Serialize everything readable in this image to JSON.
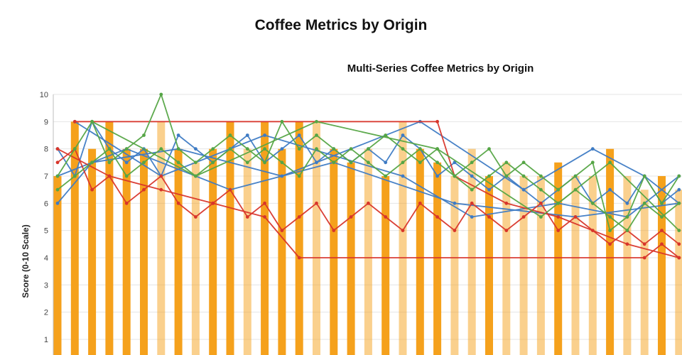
{
  "page": {
    "title": "Coffee Metrics by Origin"
  },
  "chart_data": {
    "type": "bar+line combo",
    "title": "Multi-Series Coffee Metrics by Origin",
    "ylabel": "Score (0-10 Scale)",
    "ylim": [
      0,
      10
    ],
    "y_ticks": [
      1,
      2,
      3,
      4,
      5,
      6,
      7,
      8,
      9,
      10
    ],
    "grid": "horizontal",
    "x_axis": {
      "labels_visible": false,
      "n_categories": 37
    },
    "bar_series": {
      "name": "origin-score-bars",
      "color": "#F5A11C",
      "values": [
        7,
        9,
        8,
        9,
        8,
        8,
        9,
        8,
        7.5,
        8,
        9,
        8,
        9,
        8,
        9,
        9,
        8,
        7.5,
        8,
        7,
        9,
        8,
        7.5,
        7,
        8,
        7,
        7.5,
        7,
        7,
        7.5,
        7,
        7,
        8,
        7,
        6.5,
        7,
        6.5
      ],
      "opacity": [
        1,
        1,
        1,
        1,
        1,
        1,
        0.5,
        1,
        0.5,
        1,
        1,
        0.5,
        1,
        1,
        1,
        0.5,
        1,
        1,
        0.5,
        1,
        0.5,
        1,
        1,
        0.5,
        0.5,
        1,
        0.5,
        0.5,
        0.5,
        1,
        0.5,
        0.5,
        1,
        0.5,
        0.5,
        1,
        0.5
      ]
    },
    "line_series": [
      {
        "name": "blue-1",
        "color": "#3E7BC4",
        "values": [
          8,
          7,
          9,
          8,
          7.5,
          8,
          7,
          8.5,
          8,
          7.5,
          8,
          8.5,
          7.5,
          8,
          8.5,
          7.5,
          8,
          7.5,
          8,
          7.5,
          8.5,
          8,
          7,
          7.5,
          7,
          6.5,
          7,
          6.5,
          6,
          6.5,
          7,
          6,
          6.5,
          6,
          7,
          6,
          6.5
        ]
      },
      {
        "name": "blue-2",
        "color": "#3E7BC4",
        "points": [
          [
            0,
            6
          ],
          [
            2,
            7.5
          ],
          [
            7,
            8
          ],
          [
            13,
            7
          ],
          [
            21,
            9
          ],
          [
            27,
            6.5
          ],
          [
            31,
            8
          ],
          [
            34,
            7
          ],
          [
            36,
            6
          ]
        ]
      },
      {
        "name": "blue-3",
        "color": "#3E7BC4",
        "points": [
          [
            1,
            9
          ],
          [
            6,
            7
          ],
          [
            12,
            8.5
          ],
          [
            20,
            7
          ],
          [
            24,
            5.5
          ],
          [
            29,
            6
          ],
          [
            33,
            5.5
          ],
          [
            36,
            7
          ]
        ]
      },
      {
        "name": "blue-4",
        "color": "#3E7BC4",
        "points": [
          [
            0,
            7
          ],
          [
            4,
            8
          ],
          [
            10,
            6.5
          ],
          [
            16,
            7.5
          ],
          [
            23,
            6
          ],
          [
            30,
            5.5
          ],
          [
            36,
            6
          ]
        ]
      },
      {
        "name": "red-1",
        "color": "#D8352A",
        "points": [
          [
            1,
            9
          ],
          [
            22,
            9
          ],
          [
            23,
            7
          ],
          [
            26,
            6
          ],
          [
            29,
            5.5
          ],
          [
            33,
            4.5
          ],
          [
            36,
            4
          ]
        ]
      },
      {
        "name": "red-2",
        "color": "#D8352A",
        "points": [
          [
            0,
            8
          ],
          [
            3,
            7
          ],
          [
            6,
            6.5
          ],
          [
            9,
            6
          ],
          [
            12,
            5.5
          ],
          [
            14,
            4
          ],
          [
            34,
            4
          ],
          [
            35,
            4.5
          ],
          [
            36,
            4
          ]
        ]
      },
      {
        "name": "red-3",
        "color": "#D8352A",
        "values": [
          7.5,
          8,
          6.5,
          7,
          6,
          6.5,
          7,
          6,
          5.5,
          6,
          6.5,
          5.5,
          6,
          5,
          5.5,
          6,
          5,
          5.5,
          6,
          5.5,
          5,
          6,
          5.5,
          5,
          6,
          5.5,
          5,
          5.5,
          6,
          5,
          5.5,
          5,
          4.5,
          5,
          4.5,
          5,
          4.5
        ]
      },
      {
        "name": "green-1",
        "color": "#55A545",
        "values": [
          7,
          8,
          9,
          7.5,
          8,
          8.5,
          10,
          8,
          7.5,
          8,
          8.5,
          8,
          7.5,
          9,
          8,
          8.5,
          8,
          7.5,
          8,
          8.5,
          8,
          7.5,
          8,
          7,
          7.5,
          8,
          7,
          7.5,
          7,
          6.5,
          7,
          7.5,
          5,
          5.5,
          7,
          6,
          7
        ]
      },
      {
        "name": "green-2",
        "color": "#55A545",
        "values": [
          6.5,
          7,
          7.5,
          8,
          7,
          7.5,
          8,
          7.5,
          7,
          7.5,
          8,
          7.5,
          8,
          7.5,
          7,
          8,
          7.5,
          8,
          7.5,
          7,
          7.5,
          8,
          7.5,
          7,
          6.5,
          7,
          7.5,
          7,
          6.5,
          6,
          6.5,
          6,
          5.5,
          5,
          6,
          5.5,
          6
        ]
      },
      {
        "name": "green-3",
        "color": "#55A545",
        "points": [
          [
            2,
            9
          ],
          [
            8,
            7
          ],
          [
            15,
            9
          ],
          [
            22,
            8
          ],
          [
            28,
            5.5
          ],
          [
            32,
            7.5
          ],
          [
            36,
            5
          ]
        ]
      }
    ]
  }
}
